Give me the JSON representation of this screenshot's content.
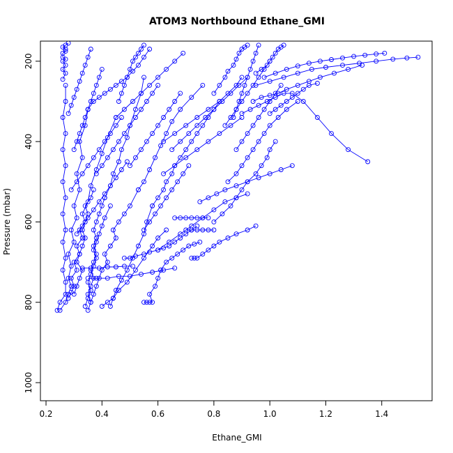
{
  "chart_data": {
    "type": "line",
    "title": "ATOM3 Northbound Ethane_GMI",
    "xlabel": "Ethane_GMI",
    "ylabel": "Pressure (mbar)",
    "xlim": [
      0.18,
      1.58
    ],
    "ylim": [
      1045,
      150
    ],
    "y_reversed": true,
    "xticks": [
      0.2,
      0.4,
      0.6,
      0.8,
      1.0,
      1.2,
      1.4
    ],
    "xtick_labels": [
      "0.2",
      "0.4",
      "0.6",
      "0.8",
      "1.0",
      "1.2",
      "1.4"
    ],
    "yticks": [
      200,
      400,
      600,
      800,
      1000
    ],
    "ytick_labels": [
      "200",
      "400",
      "600",
      "800",
      "1000"
    ],
    "grid": false,
    "legend": "none",
    "series_color": "#0000ff",
    "marker": "open-circle",
    "series": [
      {
        "x": [
          0.24,
          0.25,
          0.27,
          0.27,
          0.26,
          0.27,
          0.26,
          0.27,
          0.26,
          0.27,
          0.26,
          0.27,
          0.26,
          0.27,
          0.26,
          0.27,
          0.27
        ],
        "y": [
          820,
          800,
          780,
          750,
          720,
          690,
          650,
          620,
          580,
          540,
          500,
          460,
          420,
          380,
          340,
          300,
          260
        ]
      },
      {
        "x": [
          0.26,
          0.27,
          0.26,
          0.27,
          0.26,
          0.27,
          0.26,
          0.26,
          0.27,
          0.27,
          0.26,
          0.27,
          0.28
        ],
        "y": [
          245,
          230,
          220,
          210,
          200,
          195,
          190,
          180,
          175,
          170,
          165,
          160,
          155
        ]
      },
      {
        "x": [
          0.25,
          0.27,
          0.28,
          0.29,
          0.28,
          0.29,
          0.28,
          0.3,
          0.29,
          0.31,
          0.3,
          0.32,
          0.31,
          0.33,
          0.32,
          0.34,
          0.35
        ],
        "y": [
          820,
          800,
          780,
          760,
          740,
          710,
          680,
          650,
          620,
          590,
          560,
          520,
          480,
          440,
          400,
          360,
          320
        ]
      },
      {
        "x": [
          0.35,
          0.37,
          0.39,
          0.41,
          0.43,
          0.45,
          0.47,
          0.49,
          0.51,
          0.53,
          0.55,
          0.57
        ],
        "y": [
          320,
          300,
          290,
          280,
          270,
          260,
          250,
          240,
          225,
          210,
          190,
          170
        ]
      },
      {
        "x": [
          0.28,
          0.29,
          0.3,
          0.29,
          0.31,
          0.3,
          0.32,
          0.31,
          0.33,
          0.32,
          0.34,
          0.33,
          0.35,
          0.36,
          0.38,
          0.4,
          0.42,
          0.45
        ],
        "y": [
          790,
          775,
          760,
          740,
          720,
          700,
          680,
          660,
          640,
          620,
          600,
          580,
          550,
          510,
          470,
          430,
          390,
          340
        ]
      },
      {
        "x": [
          0.3,
          0.31,
          0.32,
          0.33,
          0.31,
          0.32,
          0.33,
          0.34,
          0.33,
          0.34,
          0.35,
          0.34,
          0.36,
          0.37
        ],
        "y": [
          780,
          760,
          740,
          720,
          700,
          680,
          660,
          640,
          620,
          600,
          580,
          560,
          540,
          520
        ]
      },
      {
        "x": [
          0.35,
          0.36,
          0.35,
          0.36,
          0.37,
          0.36,
          0.37,
          0.38,
          0.37,
          0.38,
          0.37,
          0.38,
          0.39,
          0.4,
          0.41
        ],
        "y": [
          820,
          800,
          780,
          760,
          740,
          720,
          700,
          680,
          660,
          640,
          620,
          600,
          580,
          560,
          540
        ]
      },
      {
        "x": [
          0.41,
          0.43,
          0.44,
          0.46,
          0.47,
          0.49,
          0.5,
          0.52,
          0.54,
          0.55
        ],
        "y": [
          540,
          510,
          480,
          450,
          420,
          390,
          360,
          320,
          280,
          240
        ]
      },
      {
        "x": [
          0.34,
          0.35,
          0.36,
          0.35,
          0.36,
          0.37,
          0.38,
          0.37,
          0.38,
          0.39,
          0.4,
          0.41,
          0.43
        ],
        "y": [
          810,
          790,
          770,
          750,
          730,
          710,
          690,
          670,
          650,
          630,
          610,
          590,
          560
        ]
      },
      {
        "x": [
          0.36,
          0.37,
          0.38,
          0.39,
          0.4,
          0.42,
          0.41,
          0.43,
          0.45,
          0.44,
          0.46,
          0.48,
          0.5,
          0.53
        ],
        "y": [
          800,
          780,
          760,
          740,
          720,
          700,
          680,
          660,
          640,
          620,
          600,
          580,
          560,
          520
        ]
      },
      {
        "x": [
          0.53,
          0.55,
          0.57,
          0.59,
          0.61,
          0.63,
          0.65,
          0.68,
          0.72,
          0.76
        ],
        "y": [
          520,
          500,
          470,
          440,
          410,
          380,
          350,
          320,
          290,
          260
        ]
      },
      {
        "x": [
          0.35,
          0.38,
          0.42,
          0.46,
          0.5,
          0.54,
          0.58,
          0.62,
          0.66
        ],
        "y": [
          740,
          740,
          740,
          735,
          735,
          730,
          725,
          720,
          715
        ]
      },
      {
        "x": [
          0.33,
          0.36,
          0.39,
          0.42,
          0.45,
          0.48,
          0.51
        ],
        "y": [
          715,
          715,
          715,
          712,
          712,
          710,
          710
        ]
      },
      {
        "x": [
          0.4,
          0.42,
          0.44,
          0.46,
          0.49,
          0.52,
          0.55,
          0.58,
          0.6,
          0.63
        ],
        "y": [
          810,
          800,
          790,
          770,
          750,
          720,
          690,
          660,
          640,
          620
        ]
      },
      {
        "x": [
          0.43,
          0.44,
          0.45,
          0.47,
          0.49,
          0.51,
          0.53,
          0.55,
          0.56,
          0.58
        ],
        "y": [
          810,
          790,
          770,
          745,
          720,
          690,
          660,
          630,
          600,
          560
        ]
      },
      {
        "x": [
          0.58,
          0.6,
          0.62,
          0.63,
          0.65,
          0.66,
          0.68,
          0.7,
          0.72,
          0.74,
          0.76,
          0.78,
          0.8,
          0.82
        ],
        "y": [
          560,
          540,
          520,
          500,
          480,
          460,
          440,
          420,
          400,
          380,
          360,
          340,
          320,
          300
        ]
      },
      {
        "x": [
          0.55,
          0.56,
          0.57,
          0.58,
          0.57,
          0.59,
          0.6,
          0.61
        ],
        "y": [
          800,
          800,
          800,
          800,
          780,
          760,
          740,
          720
        ]
      },
      {
        "x": [
          0.61,
          0.63,
          0.65,
          0.67,
          0.69,
          0.71,
          0.73,
          0.75
        ],
        "y": [
          720,
          700,
          690,
          680,
          670,
          660,
          655,
          650
        ]
      },
      {
        "x": [
          0.48,
          0.5,
          0.52,
          0.55,
          0.57,
          0.6,
          0.62,
          0.64,
          0.66,
          0.68,
          0.7,
          0.72,
          0.74
        ],
        "y": [
          690,
          690,
          685,
          680,
          675,
          670,
          665,
          660,
          650,
          640,
          630,
          620,
          610
        ]
      },
      {
        "x": [
          0.66,
          0.68,
          0.7,
          0.72,
          0.74,
          0.76,
          0.78
        ],
        "y": [
          590,
          590,
          590,
          590,
          590,
          590,
          590
        ]
      },
      {
        "x": [
          0.7,
          0.72,
          0.74,
          0.76,
          0.78,
          0.8
        ],
        "y": [
          620,
          620,
          620,
          620,
          620,
          620
        ]
      },
      {
        "x": [
          0.72,
          0.73,
          0.74,
          0.76,
          0.78,
          0.8,
          0.82,
          0.85,
          0.88,
          0.92,
          0.95
        ],
        "y": [
          690,
          690,
          690,
          680,
          670,
          660,
          650,
          640,
          630,
          620,
          610
        ]
      },
      {
        "x": [
          0.6,
          0.64,
          0.68,
          0.72,
          0.76,
          0.8,
          0.84,
          0.88,
          0.92
        ],
        "y": [
          670,
          650,
          630,
          610,
          590,
          570,
          550,
          540,
          530
        ]
      },
      {
        "x": [
          0.75,
          0.78,
          0.81,
          0.84,
          0.88,
          0.92,
          0.96,
          1.0,
          1.04,
          1.08
        ],
        "y": [
          550,
          540,
          530,
          520,
          510,
          500,
          490,
          480,
          470,
          460
        ]
      },
      {
        "x": [
          0.8,
          0.83,
          0.86,
          0.88,
          0.9,
          0.92,
          0.95,
          0.97,
          0.99,
          1.0,
          1.02
        ],
        "y": [
          600,
          580,
          560,
          540,
          520,
          500,
          480,
          460,
          440,
          420,
          400
        ]
      },
      {
        "x": [
          0.85,
          0.88,
          0.9,
          0.92,
          0.94,
          0.96,
          0.98,
          1.0,
          1.03,
          1.06,
          1.1
        ],
        "y": [
          500,
          480,
          460,
          440,
          420,
          400,
          380,
          360,
          340,
          320,
          300
        ]
      },
      {
        "x": [
          0.62,
          0.66,
          0.7,
          0.74,
          0.78,
          0.82,
          0.85,
          0.88,
          0.9
        ],
        "y": [
          400,
          380,
          360,
          340,
          320,
          300,
          280,
          260,
          240
        ]
      },
      {
        "x": [
          0.9,
          0.93,
          0.96,
          0.99,
          1.02,
          1.05,
          1.08,
          1.12,
          1.17,
          1.22,
          1.28,
          1.35
        ],
        "y": [
          330,
          320,
          310,
          300,
          290,
          280,
          280,
          300,
          340,
          380,
          420,
          450
        ]
      },
      {
        "x": [
          0.94,
          0.97,
          1.0,
          1.03,
          1.06,
          1.1,
          1.14,
          1.18,
          1.23,
          1.28,
          1.33
        ],
        "y": [
          300,
          290,
          285,
          280,
          270,
          260,
          250,
          240,
          230,
          220,
          210
        ]
      },
      {
        "x": [
          0.95,
          1.0,
          1.05,
          1.1,
          1.15,
          1.2,
          1.26,
          1.32,
          1.38,
          1.44,
          1.49,
          1.53
        ],
        "y": [
          260,
          250,
          240,
          230,
          220,
          215,
          210,
          205,
          200,
          195,
          192,
          190
        ]
      },
      {
        "x": [
          0.98,
          1.02,
          1.06,
          1.1,
          1.14,
          1.18,
          1.22,
          1.26,
          1.3,
          1.34,
          1.38,
          1.41
        ],
        "y": [
          240,
          230,
          220,
          212,
          205,
          200,
          196,
          192,
          188,
          185,
          182,
          180
        ]
      },
      {
        "x": [
          0.88,
          0.9,
          0.92,
          0.94,
          0.96,
          0.98,
          1.0,
          1.02,
          1.04
        ],
        "y": [
          420,
          400,
          380,
          360,
          340,
          320,
          300,
          280,
          260
        ]
      },
      {
        "x": [
          1.0,
          1.02,
          1.04,
          1.06,
          1.08,
          1.1,
          1.12,
          1.14,
          1.17
        ],
        "y": [
          330,
          320,
          310,
          300,
          290,
          280,
          270,
          260,
          255
        ]
      },
      {
        "x": [
          0.87,
          0.88,
          0.89,
          0.9,
          0.91,
          0.92,
          0.93,
          0.94,
          0.95,
          0.96
        ],
        "y": [
          340,
          320,
          300,
          280,
          260,
          240,
          220,
          200,
          180,
          160
        ]
      },
      {
        "x": [
          0.8,
          0.82,
          0.84,
          0.85,
          0.87,
          0.88,
          0.89,
          0.9,
          0.91,
          0.92
        ],
        "y": [
          280,
          260,
          240,
          225,
          210,
          195,
          180,
          170,
          165,
          160
        ]
      },
      {
        "x": [
          0.84,
          0.86,
          0.88,
          0.9,
          0.92,
          0.94,
          0.96,
          0.98,
          1.0
        ],
        "y": [
          360,
          340,
          320,
          300,
          280,
          260,
          240,
          220,
          200
        ]
      },
      {
        "x": [
          0.95,
          0.97,
          0.99,
          1.0,
          1.01,
          1.02,
          1.03,
          1.04,
          1.05
        ],
        "y": [
          230,
          220,
          210,
          200,
          190,
          180,
          170,
          165,
          160
        ]
      },
      {
        "x": [
          0.62,
          0.66,
          0.7,
          0.74,
          0.78,
          0.82,
          0.86,
          0.9
        ],
        "y": [
          480,
          460,
          440,
          420,
          400,
          380,
          360,
          340
        ]
      },
      {
        "x": [
          0.38,
          0.4,
          0.42,
          0.44,
          0.46,
          0.48,
          0.5,
          0.52,
          0.54,
          0.56,
          0.58,
          0.6
        ],
        "y": [
          480,
          460,
          440,
          420,
          400,
          380,
          360,
          340,
          320,
          300,
          280,
          260
        ]
      },
      {
        "x": [
          0.3,
          0.31,
          0.32,
          0.33,
          0.34,
          0.35,
          0.36,
          0.37,
          0.38,
          0.39,
          0.4
        ],
        "y": [
          420,
          400,
          380,
          360,
          340,
          320,
          300,
          280,
          260,
          240,
          220
        ]
      },
      {
        "x": [
          0.28,
          0.29,
          0.3,
          0.31,
          0.32,
          0.33,
          0.34,
          0.35,
          0.36
        ],
        "y": [
          330,
          310,
          290,
          270,
          250,
          230,
          210,
          190,
          170
        ]
      },
      {
        "x": [
          0.29,
          0.31,
          0.33,
          0.35,
          0.37,
          0.39,
          0.41,
          0.43,
          0.45,
          0.47
        ],
        "y": [
          520,
          500,
          480,
          460,
          440,
          420,
          400,
          380,
          360,
          340
        ]
      },
      {
        "x": [
          0.45,
          0.48,
          0.51,
          0.54,
          0.57,
          0.6,
          0.63,
          0.66,
          0.69
        ],
        "y": [
          340,
          320,
          300,
          280,
          260,
          240,
          220,
          200,
          180
        ]
      },
      {
        "x": [
          0.5,
          0.52,
          0.54,
          0.56,
          0.58,
          0.6,
          0.62,
          0.64,
          0.66,
          0.68
        ],
        "y": [
          460,
          440,
          420,
          400,
          380,
          360,
          340,
          320,
          300,
          280
        ]
      },
      {
        "x": [
          0.46,
          0.47,
          0.48,
          0.49,
          0.5,
          0.51,
          0.52,
          0.53,
          0.54,
          0.55
        ],
        "y": [
          300,
          280,
          260,
          240,
          220,
          200,
          190,
          180,
          170,
          160
        ]
      },
      {
        "x": [
          0.31,
          0.33,
          0.35,
          0.37,
          0.39,
          0.41,
          0.43,
          0.45,
          0.47,
          0.49
        ],
        "y": [
          630,
          610,
          590,
          570,
          550,
          530,
          510,
          490,
          470,
          450
        ]
      },
      {
        "x": [
          0.55,
          0.57,
          0.59,
          0.61,
          0.63,
          0.65,
          0.67,
          0.69,
          0.71
        ],
        "y": [
          620,
          600,
          580,
          560,
          540,
          520,
          500,
          480,
          460
        ]
      },
      {
        "x": [
          0.65,
          0.68,
          0.71,
          0.74,
          0.77,
          0.8,
          0.83,
          0.86,
          0.89,
          0.92
        ],
        "y": [
          420,
          400,
          380,
          360,
          340,
          320,
          300,
          280,
          260,
          240
        ]
      }
    ]
  }
}
